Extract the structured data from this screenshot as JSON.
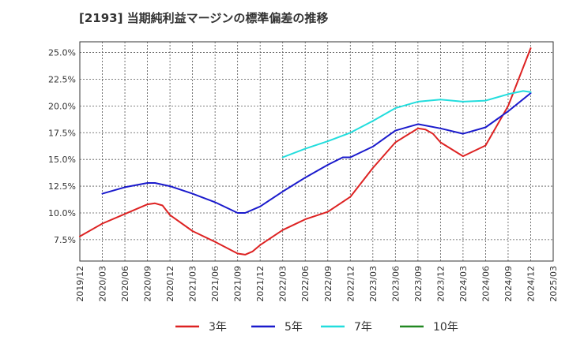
{
  "chart_data": {
    "type": "line",
    "title": "[2193]  当期純利益マージンの標準偏差の推移",
    "xlabel": "",
    "ylabel": "",
    "ylim": [
      5.5,
      26.0
    ],
    "y_ticks": [
      "7.5%",
      "10.0%",
      "12.5%",
      "15.0%",
      "17.5%",
      "20.0%",
      "22.5%",
      "25.0%"
    ],
    "y_tick_values": [
      7.5,
      10.0,
      12.5,
      15.0,
      17.5,
      20.0,
      22.5,
      25.0
    ],
    "x_ticks": [
      "2019/12",
      "2020/03",
      "2020/06",
      "2020/09",
      "2020/12",
      "2021/03",
      "2021/06",
      "2021/09",
      "2021/12",
      "2022/03",
      "2022/06",
      "2022/09",
      "2022/12",
      "2023/03",
      "2023/06",
      "2023/09",
      "2023/12",
      "2024/03",
      "2024/06",
      "2024/09",
      "2024/12",
      "2025/03"
    ],
    "grid": true,
    "legend_position": "bottom",
    "series": [
      {
        "name": "3年",
        "color": "#dd2222",
        "points": [
          [
            "2019/12",
            7.8
          ],
          [
            "2020/03",
            9.0
          ],
          [
            "2020/06",
            9.9
          ],
          [
            "2020/09",
            10.8
          ],
          [
            "2020/10",
            10.9
          ],
          [
            "2020/11",
            10.7
          ],
          [
            "2020/12",
            9.8
          ],
          [
            "2021/03",
            8.3
          ],
          [
            "2021/06",
            7.3
          ],
          [
            "2021/09",
            6.2
          ],
          [
            "2021/10",
            6.1
          ],
          [
            "2021/11",
            6.4
          ],
          [
            "2021/12",
            7.0
          ],
          [
            "2022/03",
            8.4
          ],
          [
            "2022/06",
            9.4
          ],
          [
            "2022/09",
            10.1
          ],
          [
            "2022/12",
            11.5
          ],
          [
            "2023/03",
            14.2
          ],
          [
            "2023/06",
            16.6
          ],
          [
            "2023/09",
            17.9
          ],
          [
            "2023/10",
            17.8
          ],
          [
            "2023/11",
            17.4
          ],
          [
            "2023/12",
            16.6
          ],
          [
            "2024/03",
            15.3
          ],
          [
            "2024/06",
            16.3
          ],
          [
            "2024/09",
            20.0
          ],
          [
            "2024/12",
            25.4
          ]
        ]
      },
      {
        "name": "5年",
        "color": "#1a1acc",
        "points": [
          [
            "2020/03",
            11.8
          ],
          [
            "2020/06",
            12.4
          ],
          [
            "2020/09",
            12.8
          ],
          [
            "2020/10",
            12.8
          ],
          [
            "2020/12",
            12.5
          ],
          [
            "2021/03",
            11.8
          ],
          [
            "2021/06",
            11.0
          ],
          [
            "2021/09",
            10.0
          ],
          [
            "2021/10",
            10.0
          ],
          [
            "2021/12",
            10.6
          ],
          [
            "2022/03",
            12.0
          ],
          [
            "2022/06",
            13.3
          ],
          [
            "2022/09",
            14.5
          ],
          [
            "2022/11",
            15.2
          ],
          [
            "2022/12",
            15.2
          ],
          [
            "2023/03",
            16.2
          ],
          [
            "2023/06",
            17.7
          ],
          [
            "2023/09",
            18.3
          ],
          [
            "2023/12",
            17.9
          ],
          [
            "2024/03",
            17.4
          ],
          [
            "2024/06",
            18.0
          ],
          [
            "2024/09",
            19.5
          ],
          [
            "2024/12",
            21.2
          ]
        ]
      },
      {
        "name": "7年",
        "color": "#22dddd",
        "points": [
          [
            "2022/03",
            15.2
          ],
          [
            "2022/06",
            16.0
          ],
          [
            "2022/09",
            16.7
          ],
          [
            "2022/12",
            17.5
          ],
          [
            "2023/03",
            18.6
          ],
          [
            "2023/06",
            19.8
          ],
          [
            "2023/09",
            20.4
          ],
          [
            "2023/12",
            20.6
          ],
          [
            "2024/03",
            20.4
          ],
          [
            "2024/06",
            20.5
          ],
          [
            "2024/09",
            21.1
          ],
          [
            "2024/11",
            21.4
          ],
          [
            "2024/12",
            21.3
          ]
        ]
      },
      {
        "name": "10年",
        "color": "#228822",
        "points": []
      }
    ]
  }
}
